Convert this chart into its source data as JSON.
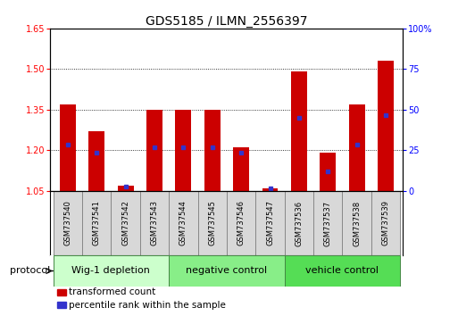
{
  "title": "GDS5185 / ILMN_2556397",
  "samples": [
    "GSM737540",
    "GSM737541",
    "GSM737542",
    "GSM737543",
    "GSM737544",
    "GSM737545",
    "GSM737546",
    "GSM737547",
    "GSM737536",
    "GSM737537",
    "GSM737538",
    "GSM737539"
  ],
  "transformed_count": [
    1.37,
    1.27,
    1.07,
    1.35,
    1.35,
    1.35,
    1.21,
    1.06,
    1.49,
    1.19,
    1.37,
    1.53
  ],
  "percentile_rank_val": [
    1.22,
    1.19,
    1.065,
    1.21,
    1.21,
    1.21,
    1.19,
    1.06,
    1.32,
    1.12,
    1.22,
    1.33
  ],
  "ylim_left": [
    1.05,
    1.65
  ],
  "ylim_right": [
    0,
    100
  ],
  "yticks_left": [
    1.05,
    1.2,
    1.35,
    1.5,
    1.65
  ],
  "yticks_right": [
    0,
    25,
    50,
    75,
    100
  ],
  "bar_color": "#cc0000",
  "dot_color": "#3333cc",
  "bar_width": 0.55,
  "group_data": [
    {
      "label": "Wig-1 depletion",
      "start": 0,
      "end": 3,
      "color": "#ccffcc"
    },
    {
      "label": "negative control",
      "start": 4,
      "end": 7,
      "color": "#88ee88"
    },
    {
      "label": "vehicle control",
      "start": 8,
      "end": 11,
      "color": "#55dd55"
    }
  ],
  "protocol_label": "protocol",
  "legend_items": [
    {
      "color": "#cc0000",
      "label": "transformed count"
    },
    {
      "color": "#3333cc",
      "label": "percentile rank within the sample"
    }
  ],
  "title_fontsize": 10,
  "tick_fontsize": 7,
  "sample_fontsize": 6,
  "group_fontsize": 8
}
